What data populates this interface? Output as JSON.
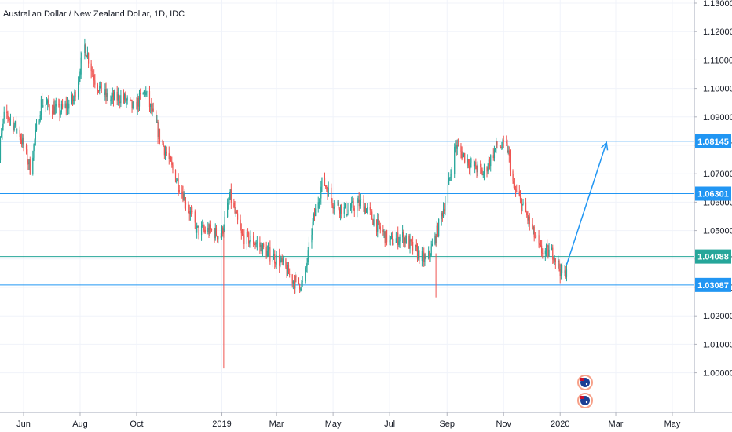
{
  "chart_data": {
    "type": "candlestick",
    "title": "Australian Dollar / New Zealand Dollar, 1D, IDC",
    "y_axis": {
      "ylim": [
        0.9905,
        1.1315
      ],
      "ticks": [
        "1.13000",
        "1.12000",
        "1.11000",
        "1.10000",
        "1.09000",
        "1.08000",
        "1.07000",
        "1.06000",
        "1.05000",
        "1.04000",
        "1.03000",
        "1.02000",
        "1.01000",
        "1.00000"
      ],
      "position": "right"
    },
    "x_axis": {
      "ticks": [
        {
          "label": "Jun",
          "date": "2018-06-01"
        },
        {
          "label": "Aug",
          "date": "2018-08-01"
        },
        {
          "label": "Oct",
          "date": "2018-10-01"
        },
        {
          "label": "2019",
          "date": "2019-01-01"
        },
        {
          "label": "Mar",
          "date": "2019-03-01"
        },
        {
          "label": "May",
          "date": "2019-05-01"
        },
        {
          "label": "Jul",
          "date": "2019-07-01"
        },
        {
          "label": "Sep",
          "date": "2019-09-01"
        },
        {
          "label": "Nov",
          "date": "2019-11-01"
        },
        {
          "label": "2020",
          "date": "2020-01-01"
        },
        {
          "label": "Mar",
          "date": "2020-03-01"
        },
        {
          "label": "May",
          "date": "2020-05-01"
        }
      ]
    },
    "price_path": [
      [
        "2018-05-01",
        1.068
      ],
      [
        "2018-05-12",
        1.092
      ],
      [
        "2018-05-28",
        1.084
      ],
      [
        "2018-06-08",
        1.072
      ],
      [
        "2018-06-20",
        1.095
      ],
      [
        "2018-07-10",
        1.092
      ],
      [
        "2018-07-25",
        1.096
      ],
      [
        "2018-08-06",
        1.115
      ],
      [
        "2018-08-18",
        1.102
      ],
      [
        "2018-09-01",
        1.096
      ],
      [
        "2018-09-15",
        1.097
      ],
      [
        "2018-09-28",
        1.093
      ],
      [
        "2018-10-10",
        1.099
      ],
      [
        "2018-10-25",
        1.084
      ],
      [
        "2018-11-08",
        1.072
      ],
      [
        "2018-11-20",
        1.063
      ],
      [
        "2018-12-05",
        1.05
      ],
      [
        "2018-12-20",
        1.05
      ],
      [
        "2018-12-31",
        1.048
      ],
      [
        "2019-01-10",
        1.062
      ],
      [
        "2019-01-22",
        1.048
      ],
      [
        "2019-02-05",
        1.046
      ],
      [
        "2019-02-20",
        1.042
      ],
      [
        "2019-03-05",
        1.039
      ],
      [
        "2019-03-20",
        1.032
      ],
      [
        "2019-03-30",
        1.031
      ],
      [
        "2019-04-10",
        1.054
      ],
      [
        "2019-04-20",
        1.068
      ],
      [
        "2019-05-01",
        1.06
      ],
      [
        "2019-05-15",
        1.057
      ],
      [
        "2019-06-01",
        1.06
      ],
      [
        "2019-06-15",
        1.053
      ],
      [
        "2019-07-01",
        1.046
      ],
      [
        "2019-07-15",
        1.048
      ],
      [
        "2019-07-28",
        1.043
      ],
      [
        "2019-08-10",
        1.039
      ],
      [
        "2019-08-20",
        1.048
      ],
      [
        "2019-09-01",
        1.063
      ],
      [
        "2019-09-10",
        1.08
      ],
      [
        "2019-09-25",
        1.074
      ],
      [
        "2019-10-10",
        1.07
      ],
      [
        "2019-10-25",
        1.08
      ],
      [
        "2019-11-05",
        1.079
      ],
      [
        "2019-11-12",
        1.065
      ],
      [
        "2019-11-25",
        1.056
      ],
      [
        "2019-12-10",
        1.043
      ],
      [
        "2019-12-25",
        1.042
      ],
      [
        "2020-01-05",
        1.033
      ],
      [
        "2020-01-08",
        1.0375
      ]
    ],
    "spikes": [
      {
        "date": "2019-01-03",
        "low": 1.0015,
        "high": 1.05
      },
      {
        "date": "2019-08-20",
        "low": 1.0265,
        "high": 1.042
      }
    ],
    "horizontal_levels": [
      {
        "value": 1.08145,
        "label": "1.08145",
        "labeled": true
      },
      {
        "value": 1.06301,
        "label": "1.06301",
        "labeled": true
      },
      {
        "value": 1.04088,
        "label": "1.04088",
        "labeled": true,
        "style": "current"
      },
      {
        "value": 1.03087,
        "label": "1.03087",
        "labeled": true
      }
    ],
    "projection_arrow": {
      "from": {
        "date": "2020-01-08",
        "value": 1.038
      },
      "to": {
        "date": "2020-02-20",
        "value": 1.081
      }
    },
    "event_markers": [
      {
        "date": "2020-01-20",
        "icon": "flag-icon"
      },
      {
        "date": "2020-01-20",
        "icon": "flag-icon"
      }
    ],
    "colors": {
      "up": "#26a69a",
      "down": "#ef5350",
      "level": "#2196f3",
      "current_label": "#26a69a",
      "grid": "#f0f3fa",
      "axis_text": "#131722"
    },
    "grid": true,
    "legend": "none"
  }
}
